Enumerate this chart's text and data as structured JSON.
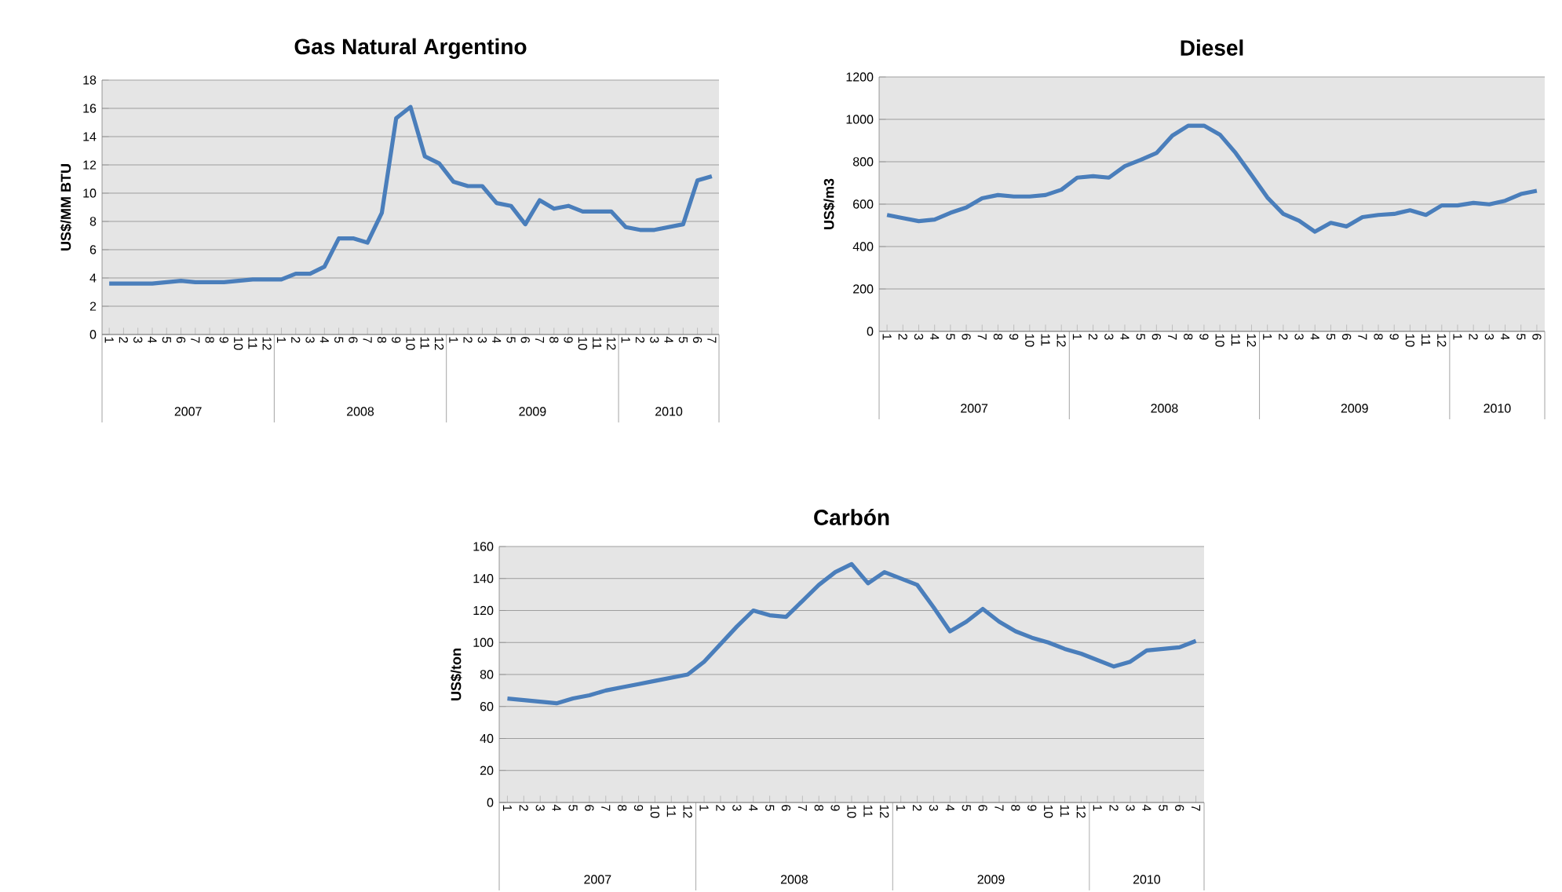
{
  "chart_data": [
    {
      "type": "line",
      "title": "Gas Natural Argentino",
      "ylabel": "US$/MM BTU",
      "color": "#4a7ebb",
      "marker": "none",
      "line_style": "solid",
      "grid": "y",
      "categories": [
        "1",
        "2",
        "3",
        "4",
        "5",
        "6",
        "7",
        "8",
        "9",
        "10",
        "11",
        "12",
        "1",
        "2",
        "3",
        "4",
        "5",
        "6",
        "7",
        "8",
        "9",
        "10",
        "11",
        "12",
        "1",
        "2",
        "3",
        "4",
        "5",
        "6",
        "7",
        "8",
        "9",
        "10",
        "11",
        "12",
        "1",
        "2",
        "3",
        "4",
        "5",
        "6",
        "7"
      ],
      "values": [
        3.6,
        3.6,
        3.6,
        3.6,
        3.7,
        3.8,
        3.7,
        3.7,
        3.7,
        3.8,
        3.9,
        3.9,
        3.9,
        4.3,
        4.3,
        4.8,
        6.8,
        6.8,
        6.5,
        8.6,
        15.3,
        16.1,
        12.6,
        12.1,
        10.8,
        10.5,
        10.5,
        9.3,
        9.1,
        7.8,
        9.5,
        8.9,
        9.1,
        8.7,
        8.7,
        8.7,
        7.6,
        7.4,
        7.4,
        7.6,
        7.8,
        10.9,
        11.2
      ],
      "ylim": [
        0,
        18
      ],
      "yticks": [
        0,
        2,
        4,
        6,
        8,
        10,
        12,
        14,
        16,
        18
      ],
      "annotations": [
        "2007",
        "2008",
        "2009",
        "2010"
      ]
    },
    {
      "type": "line",
      "title": "Diesel",
      "ylabel": "US$/m3",
      "color": "#4a7ebb",
      "marker": "none",
      "line_style": "solid",
      "grid": "y",
      "categories": [
        "1",
        "2",
        "3",
        "4",
        "5",
        "6",
        "7",
        "8",
        "9",
        "10",
        "11",
        "12",
        "1",
        "2",
        "3",
        "4",
        "5",
        "6",
        "7",
        "8",
        "9",
        "10",
        "11",
        "12",
        "1",
        "2",
        "3",
        "4",
        "5",
        "6",
        "7",
        "8",
        "9",
        "10",
        "11",
        "12",
        "1",
        "2",
        "3",
        "4",
        "5",
        "6"
      ],
      "values": [
        549,
        534,
        520,
        527,
        559,
        584,
        628,
        643,
        636,
        636,
        643,
        668,
        725,
        732,
        725,
        779,
        809,
        841,
        923,
        970,
        970,
        928,
        841,
        737,
        631,
        554,
        522,
        470,
        512,
        495,
        539,
        549,
        554,
        571,
        549,
        594,
        594,
        606,
        599,
        616,
        648,
        663
      ],
      "ylim": [
        0,
        1200
      ],
      "yticks": [
        0,
        200,
        400,
        600,
        800,
        1000,
        1200
      ],
      "annotations": [
        "2007",
        "2008",
        "2009",
        "2010"
      ]
    },
    {
      "type": "line",
      "title": "Carbón",
      "ylabel": "US$/ton",
      "color": "#4a7ebb",
      "marker": "none",
      "line_style": "solid",
      "grid": "y",
      "categories": [
        "1",
        "2",
        "3",
        "4",
        "5",
        "6",
        "7",
        "8",
        "9",
        "10",
        "11",
        "12",
        "1",
        "2",
        "3",
        "4",
        "5",
        "6",
        "7",
        "8",
        "9",
        "10",
        "11",
        "12",
        "1",
        "2",
        "3",
        "4",
        "5",
        "6",
        "7",
        "8",
        "9",
        "10",
        "11",
        "12",
        "1",
        "2",
        "3",
        "4",
        "5",
        "6",
        "7"
      ],
      "values": [
        65,
        64,
        63,
        62,
        65,
        67,
        70,
        72,
        74,
        76,
        78,
        80,
        88,
        99,
        110,
        120,
        117,
        116,
        126,
        136,
        144,
        149,
        137,
        144,
        140,
        136,
        122,
        107,
        113,
        121,
        113,
        107,
        103,
        100,
        96,
        93,
        89,
        85,
        88,
        95,
        96,
        97,
        101
      ],
      "ylim": [
        0,
        160
      ],
      "yticks": [
        0,
        20,
        40,
        60,
        80,
        100,
        120,
        140,
        160
      ],
      "annotations": [
        "2007",
        "2008",
        "2009",
        "2010"
      ]
    }
  ]
}
